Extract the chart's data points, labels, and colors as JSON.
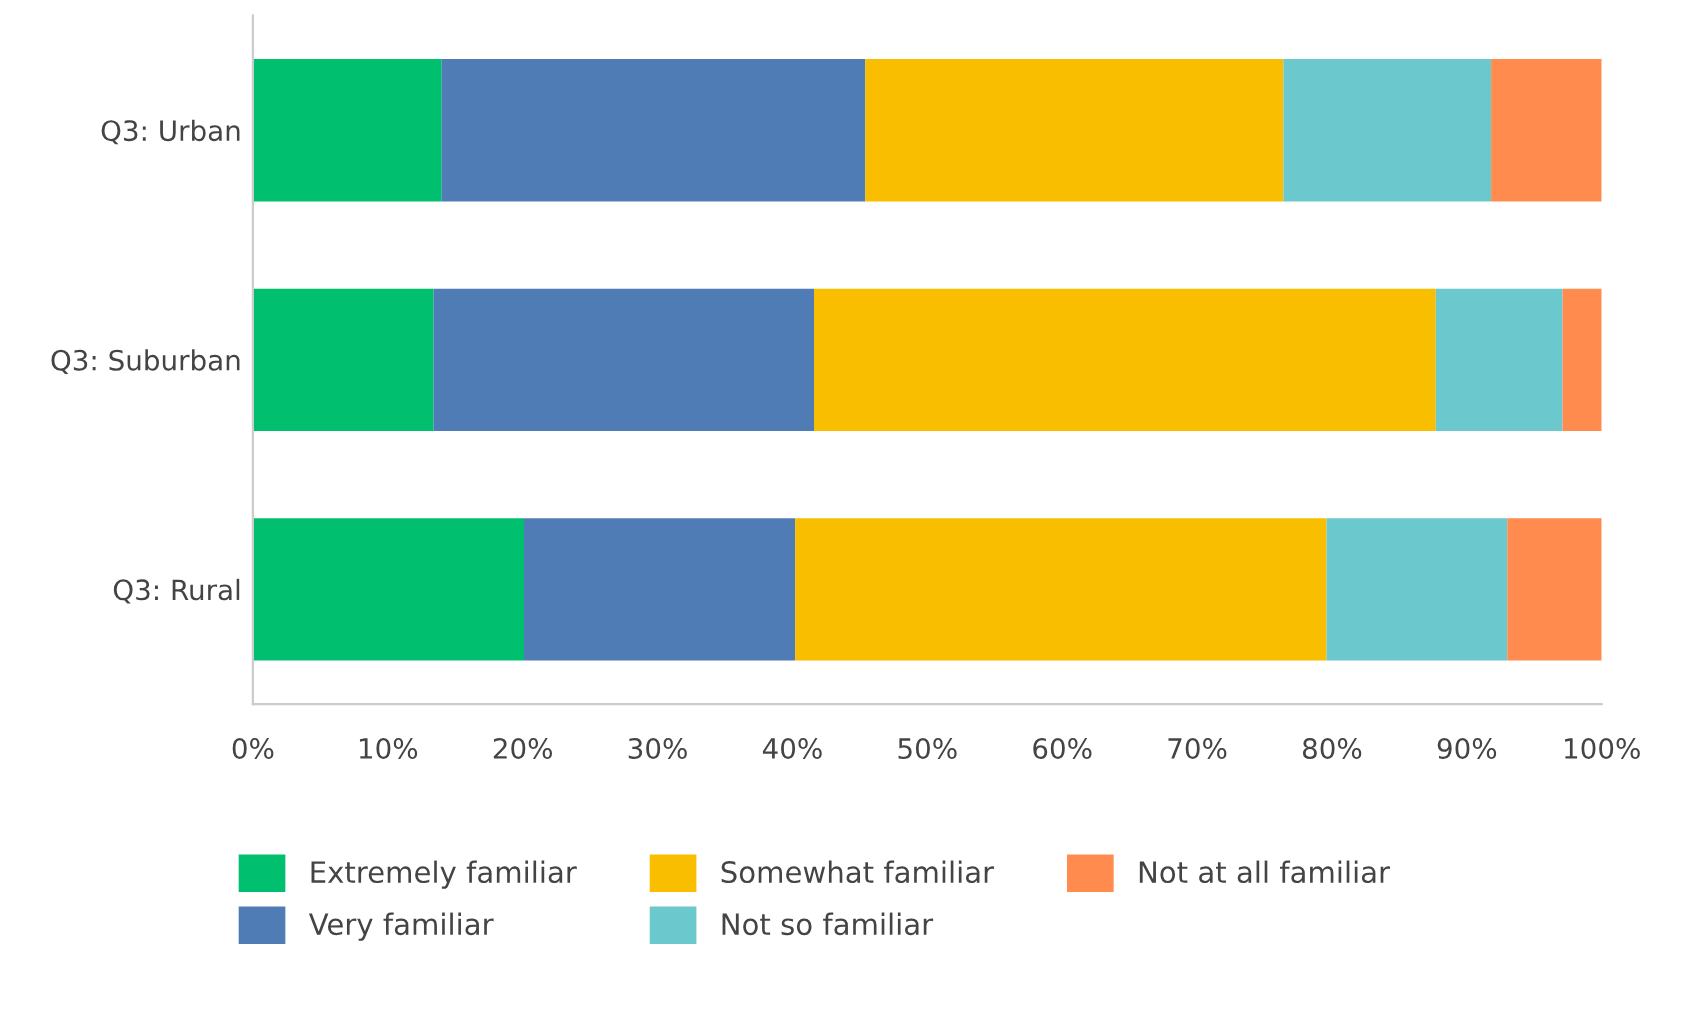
{
  "chart_data": {
    "type": "bar",
    "orientation": "horizontal",
    "stacked": true,
    "categories": [
      "Q3: Urban",
      "Q3: Suburban",
      "Q3: Rural"
    ],
    "series": [
      {
        "name": "Extremely familiar",
        "color": "#00bf6f",
        "values": [
          14.0,
          13.4,
          20.1
        ]
      },
      {
        "name": "Very familiar",
        "color": "#507cb6",
        "values": [
          31.4,
          28.2,
          20.1
        ]
      },
      {
        "name": "Somewhat familiar",
        "color": "#f9be00",
        "values": [
          31.0,
          46.1,
          39.4
        ]
      },
      {
        "name": "Not so familiar",
        "color": "#6bc8cd",
        "values": [
          15.4,
          9.4,
          13.4
        ]
      },
      {
        "name": "Not at all familiar",
        "color": "#ff8b4f",
        "values": [
          8.2,
          2.9,
          7.0
        ]
      }
    ],
    "xlim": [
      0,
      100
    ],
    "xticks": [
      {
        "value": 0,
        "label": "0%"
      },
      {
        "value": 10,
        "label": "10%"
      },
      {
        "value": 20,
        "label": "20%"
      },
      {
        "value": 30,
        "label": "30%"
      },
      {
        "value": 40,
        "label": "40%"
      },
      {
        "value": 50,
        "label": "50%"
      },
      {
        "value": 60,
        "label": "60%"
      },
      {
        "value": 70,
        "label": "70%"
      },
      {
        "value": 80,
        "label": "80%"
      },
      {
        "value": 90,
        "label": "90%"
      },
      {
        "value": 100,
        "label": "100%"
      }
    ],
    "grid": false,
    "legend": "bottom"
  }
}
